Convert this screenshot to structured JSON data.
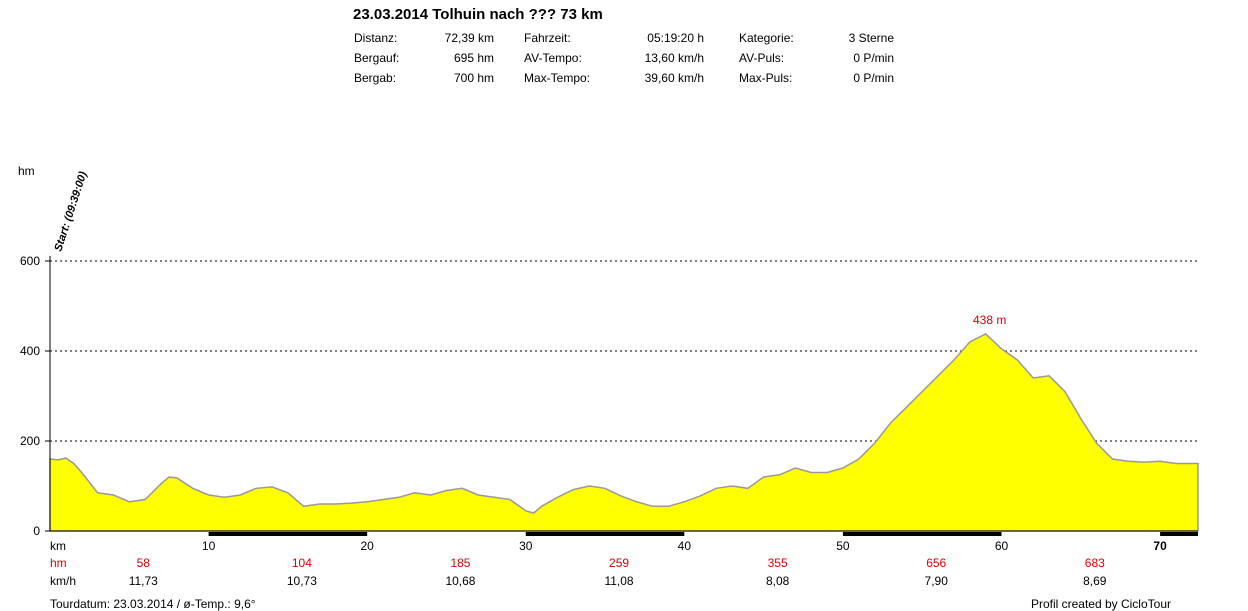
{
  "header": {
    "title": "23.03.2014 Tolhuin nach ??? 73 km",
    "stats": [
      {
        "label": "Distanz:",
        "value": "72,39 km"
      },
      {
        "label": "Fahrzeit:",
        "value": "05:19:20 h"
      },
      {
        "label": "Kategorie:",
        "value": "3 Sterne"
      },
      {
        "label": "Bergauf:",
        "value": "695 hm"
      },
      {
        "label": "AV-Tempo:",
        "value": "13,60 km/h"
      },
      {
        "label": "AV-Puls:",
        "value": "0 P/min"
      },
      {
        "label": "Bergab:",
        "value": "700 hm"
      },
      {
        "label": "Max-Tempo:",
        "value": "39,60 km/h"
      },
      {
        "label": "Max-Puls:",
        "value": "0 P/min"
      }
    ]
  },
  "chart_data": {
    "type": "area",
    "ylabel": "hm",
    "xlabel": "km",
    "xlim": [
      0,
      72.39
    ],
    "ylim": [
      0,
      600
    ],
    "grid": "dotted horizontal at y ticks",
    "y_ticks": [
      0,
      200,
      400,
      600
    ],
    "x_ticks": [
      10,
      20,
      30,
      40,
      50,
      60,
      70
    ],
    "start_annotation": "Start: (09:39:00)",
    "peak": {
      "x": 59,
      "y": 438,
      "label": "438 m"
    },
    "fill_color": "#ffff00",
    "line_color": "#999999",
    "x": [
      0,
      0.5,
      1,
      1.5,
      2,
      3,
      4,
      5,
      6,
      7,
      7.5,
      8,
      9,
      10,
      11,
      12,
      13,
      14,
      15,
      16,
      17,
      18,
      19,
      20,
      21,
      22,
      23,
      24,
      25,
      26,
      27,
      28,
      29,
      30,
      30.5,
      31,
      32,
      33,
      34,
      35,
      36,
      37,
      38,
      39,
      40,
      41,
      42,
      43,
      44,
      45,
      46,
      47,
      48,
      49,
      50,
      51,
      52,
      53,
      54,
      55,
      56,
      57,
      58,
      59,
      60,
      61,
      62,
      63,
      64,
      65,
      66,
      67,
      68,
      69,
      70,
      71,
      72.39
    ],
    "y": [
      160,
      158,
      162,
      150,
      130,
      85,
      80,
      65,
      70,
      105,
      120,
      118,
      95,
      80,
      75,
      80,
      95,
      98,
      85,
      55,
      60,
      60,
      62,
      65,
      70,
      75,
      85,
      80,
      90,
      95,
      80,
      75,
      70,
      45,
      40,
      55,
      75,
      92,
      100,
      95,
      78,
      65,
      55,
      55,
      65,
      78,
      95,
      100,
      95,
      120,
      125,
      140,
      130,
      130,
      140,
      160,
      195,
      240,
      275,
      310,
      345,
      380,
      420,
      438,
      405,
      380,
      340,
      345,
      310,
      250,
      195,
      160,
      155,
      153,
      155,
      150,
      150
    ],
    "interval_table": {
      "row_labels": {
        "x": "km",
        "hm": "hm",
        "kmh": "km/h"
      },
      "hm": [
        "58",
        "104",
        "185",
        "259",
        "355",
        "656",
        "683"
      ],
      "kmh": [
        "11,73",
        "10,73",
        "10,68",
        "11,08",
        "8,08",
        "7,90",
        "8,69"
      ]
    }
  },
  "footer": {
    "left": "Tourdatum: 23.03.2014  /  ø-Temp.: 9,6°",
    "right": "Profil created by CicloTour"
  }
}
